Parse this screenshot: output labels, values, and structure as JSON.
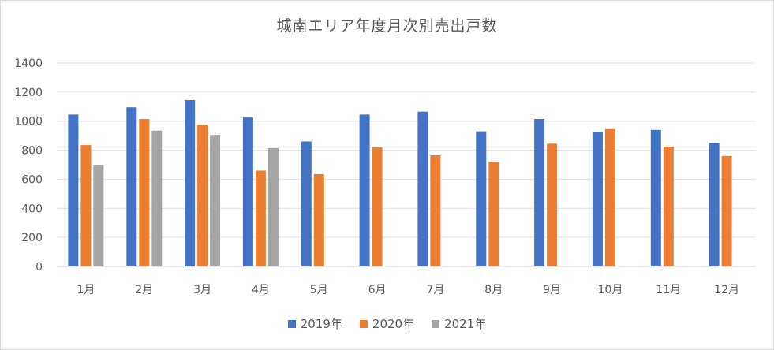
{
  "chart_data": {
    "type": "bar",
    "title": "城南エリア年度月次別売出戸数",
    "categories": [
      "1月",
      "2月",
      "3月",
      "4月",
      "5月",
      "6月",
      "7月",
      "8月",
      "9月",
      "10月",
      "11月",
      "12月"
    ],
    "series": [
      {
        "name": "2019年",
        "color": "#4472C4",
        "values": [
          1045,
          1095,
          1145,
          1025,
          860,
          1045,
          1065,
          930,
          1015,
          925,
          940,
          850
        ]
      },
      {
        "name": "2020年",
        "color": "#ED7D31",
        "values": [
          835,
          1015,
          975,
          660,
          635,
          820,
          765,
          720,
          845,
          945,
          825,
          760
        ]
      },
      {
        "name": "2021年",
        "color": "#A5A5A5",
        "values": [
          700,
          935,
          905,
          815,
          null,
          null,
          null,
          null,
          null,
          null,
          null,
          null
        ]
      }
    ],
    "yticks": [
      0,
      200,
      400,
      600,
      800,
      1000,
      1200,
      1400
    ],
    "ylim": [
      0,
      1400
    ],
    "grid": true,
    "legend": "bottom"
  }
}
